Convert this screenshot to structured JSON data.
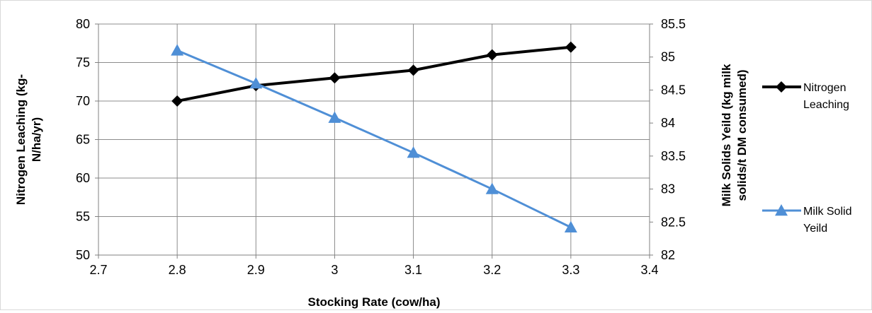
{
  "chart_data": {
    "type": "line",
    "xlabel": "Stocking Rate (cow/ha)",
    "ylabel_left_lines": [
      "Nitrogen Leaching (kg-",
      "N/ha/yr)"
    ],
    "ylabel_right_lines": [
      "Milk Solids Yeild (kg milk",
      "solids/t DM consumed)"
    ],
    "xlim": [
      2.7,
      3.4
    ],
    "ylim_left": [
      50,
      80
    ],
    "ylim_right": [
      82,
      85.5
    ],
    "x_ticks": [
      "2.7",
      "2.8",
      "2.9",
      "3",
      "3.1",
      "3.2",
      "3.3",
      "3.4"
    ],
    "x_tick_values": [
      2.7,
      2.8,
      2.9,
      3.0,
      3.1,
      3.2,
      3.3,
      3.4
    ],
    "y_left_ticks": [
      "50",
      "55",
      "60",
      "65",
      "70",
      "75",
      "80"
    ],
    "y_left_tick_values": [
      50,
      55,
      60,
      65,
      70,
      75,
      80
    ],
    "y_right_ticks": [
      "82",
      "82.5",
      "83",
      "83.5",
      "84",
      "84.5",
      "85",
      "85.5"
    ],
    "y_right_tick_values": [
      82,
      82.5,
      83,
      83.5,
      84,
      84.5,
      85,
      85.5
    ],
    "grid": true,
    "legend_position": "right",
    "series": [
      {
        "name_lines": [
          "Nitrogen",
          "Leaching"
        ],
        "axis": "left",
        "marker": "diamond",
        "color": "#000000",
        "x": [
          2.8,
          2.9,
          3.0,
          3.1,
          3.2,
          3.3
        ],
        "y": [
          70,
          72,
          73,
          74,
          76,
          77
        ]
      },
      {
        "name_lines": [
          "Milk Solid",
          "Yeild"
        ],
        "axis": "right",
        "marker": "triangle",
        "color": "#4f8fd6",
        "x": [
          2.8,
          2.9,
          3.0,
          3.1,
          3.2,
          3.3
        ],
        "y": [
          85.1,
          84.6,
          84.08,
          83.55,
          83.0,
          82.42
        ]
      }
    ]
  }
}
